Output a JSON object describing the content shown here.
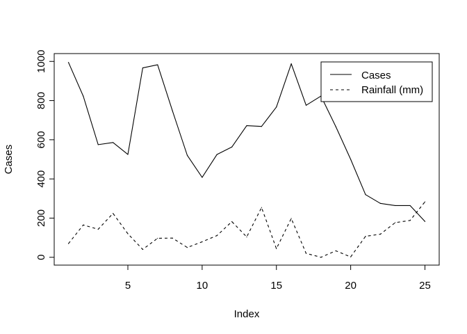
{
  "chart_data": {
    "type": "line",
    "title": "",
    "xlabel": "Index",
    "ylabel": "Cases",
    "xlim": [
      0.04,
      25.96
    ],
    "ylim": [
      -40,
      1040
    ],
    "xticks": [
      5,
      10,
      15,
      20,
      25
    ],
    "xtick_labels": [
      "5",
      "10",
      "15",
      "20",
      "25"
    ],
    "yticks": [
      0,
      200,
      400,
      600,
      800,
      1000
    ],
    "ytick_labels": [
      "0",
      "200",
      "400",
      "600",
      "800",
      "1000"
    ],
    "grid": false,
    "legend_position": "top-right",
    "x": [
      1,
      2,
      3,
      4,
      5,
      6,
      7,
      8,
      9,
      10,
      11,
      12,
      13,
      14,
      15,
      16,
      17,
      18,
      19,
      20,
      21,
      22,
      23,
      24,
      25
    ],
    "series": [
      {
        "name": "Cases",
        "line_style": "solid",
        "color": "#000000",
        "values": [
          995,
          822,
          575,
          586,
          525,
          967,
          983,
          748,
          520,
          408,
          525,
          563,
          672,
          668,
          767,
          988,
          776,
          823,
          667,
          500,
          320,
          275,
          264,
          264,
          183
        ]
      },
      {
        "name": "Rainfall (mm)",
        "line_style": "dashed",
        "color": "#000000",
        "values": [
          70,
          165,
          143,
          224,
          120,
          40,
          97,
          98,
          50,
          79,
          111,
          182,
          104,
          254,
          44,
          198,
          20,
          0,
          33,
          2,
          107,
          118,
          177,
          188,
          283
        ]
      }
    ]
  }
}
